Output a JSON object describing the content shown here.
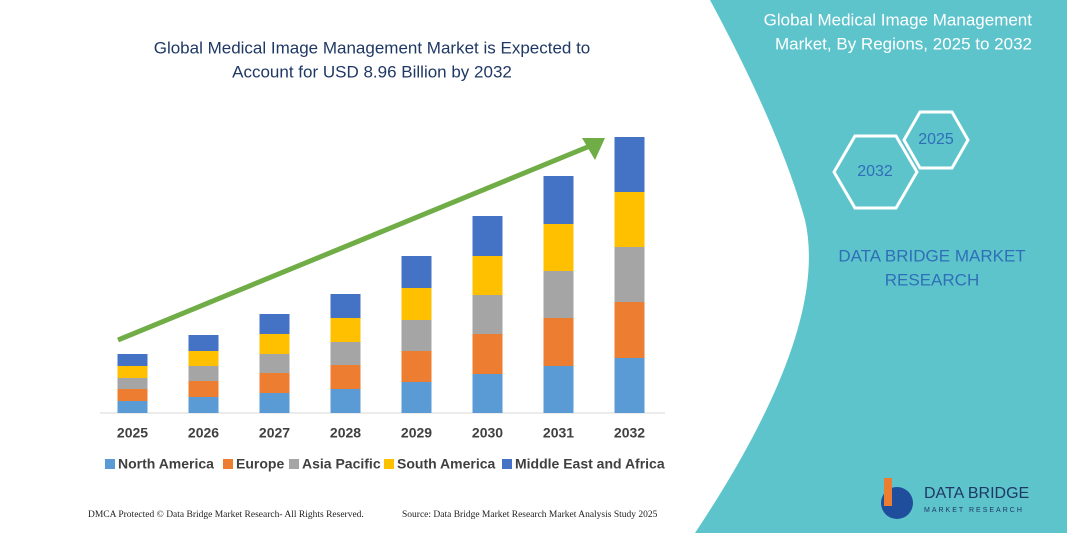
{
  "chart_data": {
    "type": "stacked-bar",
    "title": [
      "Global Medical Image Management Market is Expected to",
      "Account for USD 8.96 Billion by 2032"
    ],
    "categories": [
      "2025",
      "2026",
      "2027",
      "2028",
      "2029",
      "2030",
      "2031",
      "2032"
    ],
    "series": [
      {
        "name": "North America",
        "color": "#5b9bd5",
        "values": [
          12,
          16,
          20,
          24,
          31,
          39,
          47,
          55
        ]
      },
      {
        "name": "Europe",
        "color": "#ed7d31",
        "values": [
          12,
          16,
          20,
          24,
          31,
          40,
          48,
          56
        ]
      },
      {
        "name": "Asia Pacific",
        "color": "#a5a5a5",
        "values": [
          11,
          15,
          19,
          23,
          31,
          39,
          47,
          55
        ]
      },
      {
        "name": "South America",
        "color": "#ffc000",
        "values": [
          12,
          15,
          20,
          24,
          32,
          39,
          47,
          55
        ]
      },
      {
        "name": "Middle East and Africa",
        "color": "#4472c4",
        "values": [
          12,
          16,
          20,
          24,
          32,
          40,
          48,
          55
        ]
      }
    ],
    "ylim": [
      0,
      300
    ]
  },
  "panel": {
    "title": [
      "Global Medical Image Management",
      "Market, By Regions, 2025 to 2032"
    ],
    "hex_years": [
      "2025",
      "2032"
    ],
    "brand": [
      "DATA BRIDGE MARKET",
      "RESEARCH"
    ]
  },
  "logo": {
    "name": "DATA BRIDGE",
    "tagline": "MARKET RESEARCH"
  },
  "footer": {
    "left": "DMCA Protected © Data Bridge Market Research- All Rights Reserved.",
    "right": "Source: Data Bridge Market Research Market Analysis Study 2025"
  }
}
